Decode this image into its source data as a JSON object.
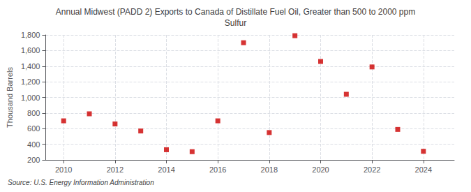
{
  "chart_data": {
    "type": "scatter",
    "title": "Annual Midwest (PADD 2) Exports to Canada of Distillate Fuel Oil, Greater than 500 to 2000 ppm\nSulfur",
    "ylabel": "Thousand Barrels",
    "source": "Source: U.S. Energy Information Administration",
    "x": [
      2010,
      2011,
      2012,
      2013,
      2014,
      2015,
      2016,
      2017,
      2018,
      2019,
      2020,
      2021,
      2022,
      2023,
      2024
    ],
    "values": [
      700,
      790,
      660,
      570,
      330,
      305,
      700,
      1700,
      550,
      1790,
      1460,
      1040,
      1390,
      590,
      310
    ],
    "color": "#cc0000",
    "marker": "square",
    "xlim": [
      2009.3,
      2025.2
    ],
    "xticks": [
      2010,
      2012,
      2014,
      2016,
      2018,
      2020,
      2022,
      2024
    ],
    "ylim": [
      200,
      1800
    ],
    "yticks": [
      200,
      400,
      600,
      800,
      {
        "value": 1000,
        "label": "1,000"
      },
      {
        "value": 1200,
        "label": "1,200"
      },
      {
        "value": 1400,
        "label": "1,400"
      },
      {
        "value": 1600,
        "label": "1,600"
      },
      {
        "value": 1800,
        "label": "1,800"
      }
    ],
    "grid": true
  }
}
